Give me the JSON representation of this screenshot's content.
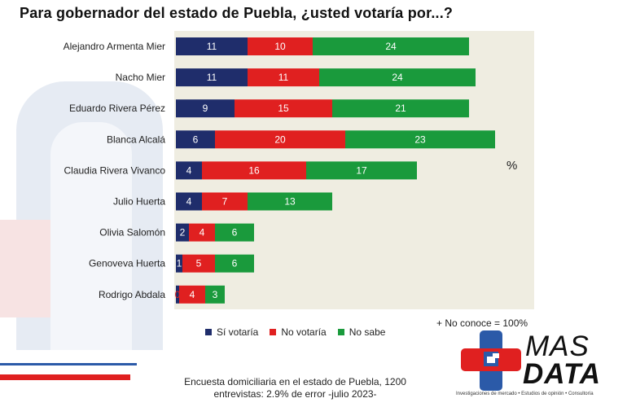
{
  "title": "Para gobernador del estado de Puebla, ¿usted votaría por...?",
  "unit_label": "%",
  "note": "+ No conoce = 100%",
  "footnote_line1": "Encuesta domiciliaria en el estado de Puebla, 1200",
  "footnote_line2": "entrevistas: 2.9% de error -julio 2023-",
  "logo": {
    "word1": "MAS",
    "word2": "DATA",
    "tagline": "Investigaciones de mercado • Estudios de opinión • Consultoría"
  },
  "colors": {
    "si": "#1f2d6b",
    "no": "#e02020",
    "nosabe": "#1a9a3c",
    "plot_bg": "#efede1",
    "deco_blue": "#e6ebf3",
    "deco_red": "#f7e3e3"
  },
  "chart_data": {
    "type": "bar",
    "orientation": "horizontal",
    "stacked": true,
    "categories": [
      "Alejandro Armenta Mier",
      "Nacho Mier",
      "Eduardo Rivera Pérez",
      "Blanca Alcalá",
      "Claudia Rivera Vivanco",
      "Julio Huerta",
      "Olivia Salomón",
      "Genoveva Huerta",
      "Rodrigo Abdala"
    ],
    "series": [
      {
        "name": "Sí votaría",
        "color": "#1f2d6b",
        "values": [
          11,
          11,
          9,
          6,
          4,
          4,
          2,
          1,
          0
        ]
      },
      {
        "name": "No votaría",
        "color": "#e02020",
        "values": [
          10,
          11,
          15,
          20,
          16,
          7,
          4,
          5,
          4
        ]
      },
      {
        "name": "No sabe",
        "color": "#1a9a3c",
        "values": [
          24,
          24,
          21,
          23,
          17,
          13,
          6,
          6,
          3
        ]
      }
    ],
    "xlim": [
      0,
      60
    ],
    "legend_position": "bottom",
    "grid": false
  }
}
